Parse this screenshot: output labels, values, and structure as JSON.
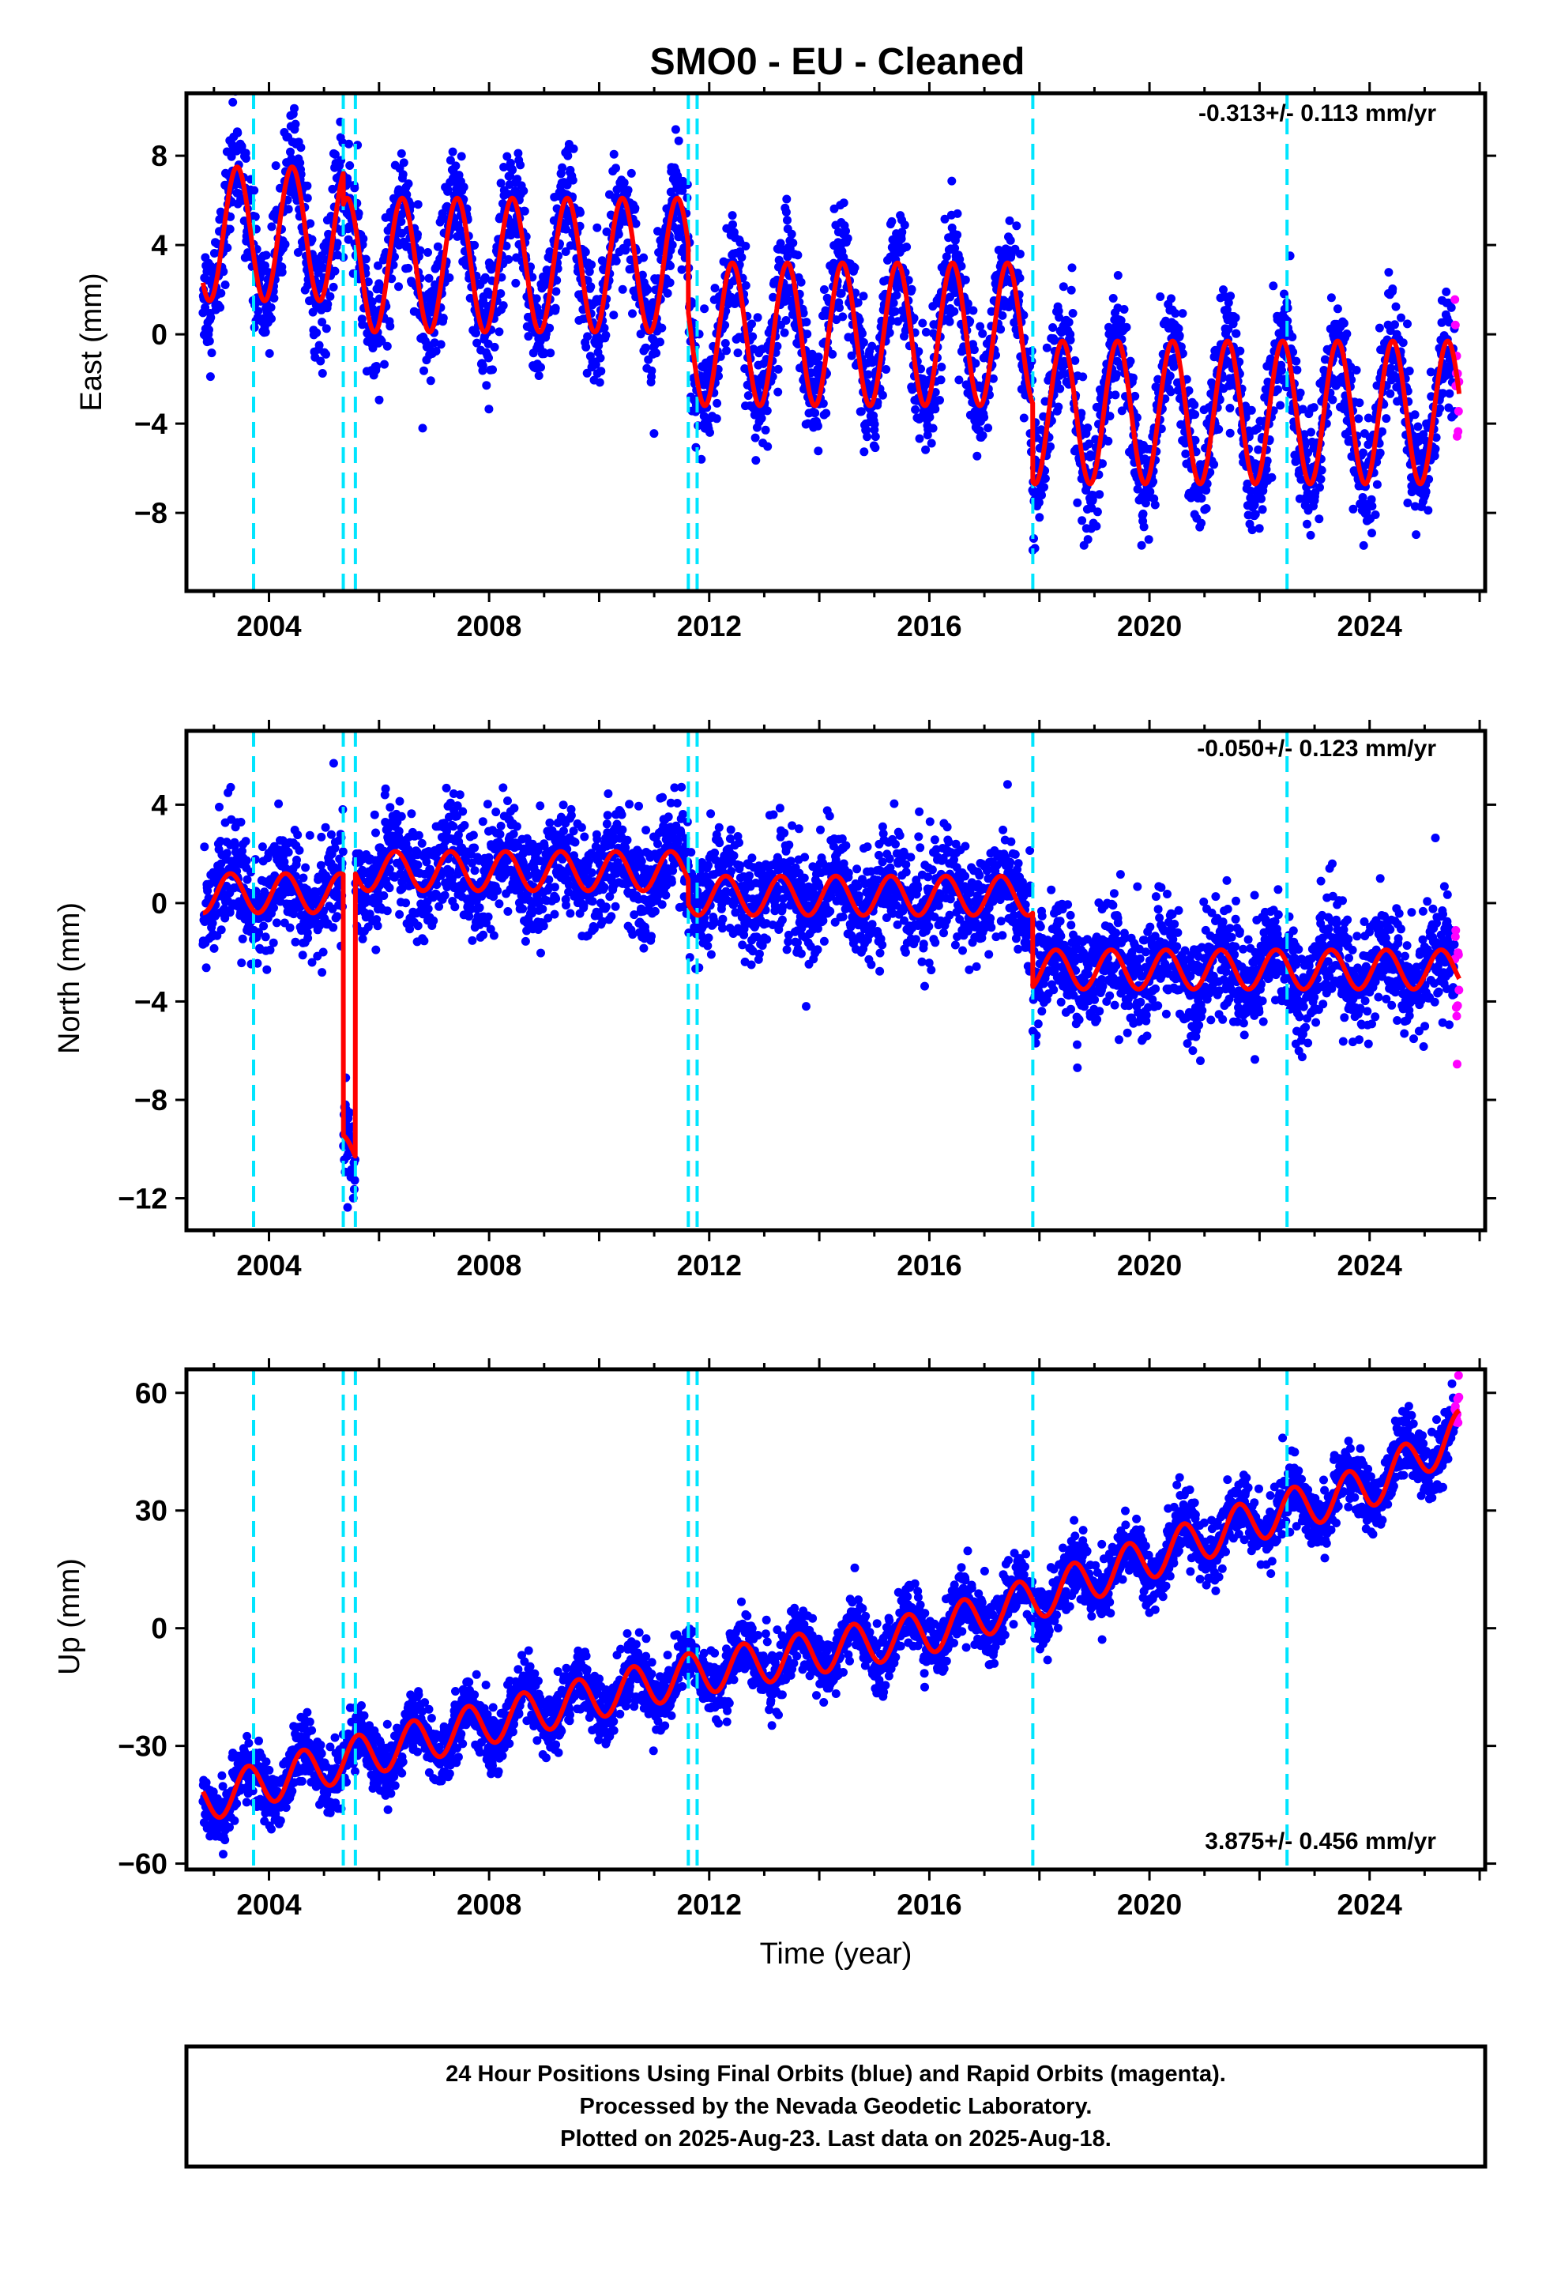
{
  "page": {
    "title": "SMO0  - EU - Cleaned",
    "xlabel": "Time (year)",
    "notes": [
      "24 Hour Positions Using Final Orbits (blue) and Rapid Orbits (magenta).",
      "Processed by the Nevada Geodetic Laboratory.",
      "Plotted on 2025-Aug-23. Last data on 2025-Aug-18."
    ]
  },
  "chart_data": [
    {
      "type": "scatter",
      "component": "east",
      "ylabel": "East (mm)",
      "rate_text": "-0.313+/- 0.113 mm/yr",
      "rate_position": "top-right",
      "xlim": [
        2002.5,
        2026.1
      ],
      "ylim": [
        -11.5,
        10.8
      ],
      "xticks": [
        2004,
        2008,
        2012,
        2016,
        2020,
        2024
      ],
      "yticks": [
        8,
        4,
        0,
        -4,
        -8
      ],
      "ytick_labels": [
        "8",
        "4",
        "0",
        "−4",
        "−8"
      ],
      "grid": false,
      "series_colors": {
        "final": "#0000ff",
        "rapid": "#ff00ff",
        "model": "#ff0000",
        "events": "#00e5ff"
      },
      "event_lines": [
        2003.72,
        2005.35,
        2005.57,
        2011.62,
        2011.78,
        2017.88,
        2022.5
      ],
      "data_start": 2002.8,
      "data_end": 2025.55,
      "rapid_start": 2025.55,
      "rapid_end": 2025.63,
      "offset_segments": [
        {
          "start": 2002.8,
          "end": 2005.35,
          "value": 4.5
        },
        {
          "start": 2005.35,
          "end": 2011.62,
          "value": 3.1
        },
        {
          "start": 2011.62,
          "end": 2017.88,
          "value": 0.0
        },
        {
          "start": 2017.88,
          "end": 2025.63,
          "value": -3.5
        }
      ],
      "annual_amplitude": [
        {
          "start": 2002.8,
          "end": 2011.62,
          "value": 3.0
        },
        {
          "start": 2011.62,
          "end": 2025.63,
          "value": 3.2
        }
      ],
      "annual_peak_phase": 0.42,
      "scatter_sd": 1.3
    },
    {
      "type": "scatter",
      "component": "north",
      "ylabel": "North (mm)",
      "rate_text": "-0.050+/- 0.123 mm/yr",
      "rate_position": "top-right",
      "xlim": [
        2002.5,
        2026.1
      ],
      "ylim": [
        -13.3,
        7.0
      ],
      "xticks": [
        2004,
        2008,
        2012,
        2016,
        2020,
        2024
      ],
      "yticks": [
        4,
        0,
        -4,
        -8,
        -12
      ],
      "ytick_labels": [
        "4",
        "0",
        "−4",
        "−8",
        "−12"
      ],
      "grid": false,
      "series_colors": {
        "final": "#0000ff",
        "rapid": "#ff00ff",
        "model": "#ff0000",
        "events": "#00e5ff"
      },
      "event_lines": [
        2003.72,
        2005.35,
        2005.57,
        2011.62,
        2011.78,
        2017.88,
        2022.5
      ],
      "data_start": 2002.8,
      "data_end": 2025.55,
      "rapid_start": 2025.55,
      "rapid_end": 2025.63,
      "offset_segments": [
        {
          "start": 2002.8,
          "end": 2005.35,
          "value": 0.4
        },
        {
          "start": 2005.35,
          "end": 2005.57,
          "value": -10.2
        },
        {
          "start": 2005.57,
          "end": 2011.62,
          "value": 1.3
        },
        {
          "start": 2011.62,
          "end": 2017.88,
          "value": 0.3
        },
        {
          "start": 2017.88,
          "end": 2025.63,
          "value": -2.7
        }
      ],
      "annual_amplitude": [
        {
          "start": 2002.8,
          "end": 2025.63,
          "value": 0.8
        }
      ],
      "annual_peak_phase": 0.3,
      "scatter_sd": 1.1
    },
    {
      "type": "scatter",
      "component": "up",
      "ylabel": "Up (mm)",
      "rate_text": "3.875+/- 0.456 mm/yr",
      "rate_position": "bottom-right",
      "xlim": [
        2002.5,
        2026.1
      ],
      "ylim": [
        -61.5,
        66
      ],
      "xticks": [
        2004,
        2008,
        2012,
        2016,
        2020,
        2024
      ],
      "yticks": [
        60,
        30,
        0,
        -30,
        -60
      ],
      "ytick_labels": [
        "60",
        "30",
        "0",
        "−30",
        "−60"
      ],
      "grid": false,
      "series_colors": {
        "final": "#0000ff",
        "rapid": "#ff00ff",
        "model": "#ff0000",
        "events": "#00e5ff"
      },
      "event_lines": [
        2003.72,
        2005.35,
        2005.57,
        2011.62,
        2011.78,
        2017.88,
        2022.5
      ],
      "data_start": 2002.8,
      "data_end": 2025.55,
      "rapid_start": 2025.55,
      "rapid_end": 2025.63,
      "trend_points": [
        {
          "x": 2002.8,
          "y": -44
        },
        {
          "x": 2005.0,
          "y": -35
        },
        {
          "x": 2008.0,
          "y": -24
        },
        {
          "x": 2011.6,
          "y": -12
        },
        {
          "x": 2016.0,
          "y": -1
        },
        {
          "x": 2018.0,
          "y": 8
        },
        {
          "x": 2020.0,
          "y": 18
        },
        {
          "x": 2022.0,
          "y": 28
        },
        {
          "x": 2024.0,
          "y": 36
        },
        {
          "x": 2025.63,
          "y": 50
        }
      ],
      "annual_amplitude": [
        {
          "start": 2002.8,
          "end": 2025.63,
          "value": 5.5
        }
      ],
      "annual_peak_phase": 0.62,
      "scatter_sd": 4.0
    }
  ]
}
